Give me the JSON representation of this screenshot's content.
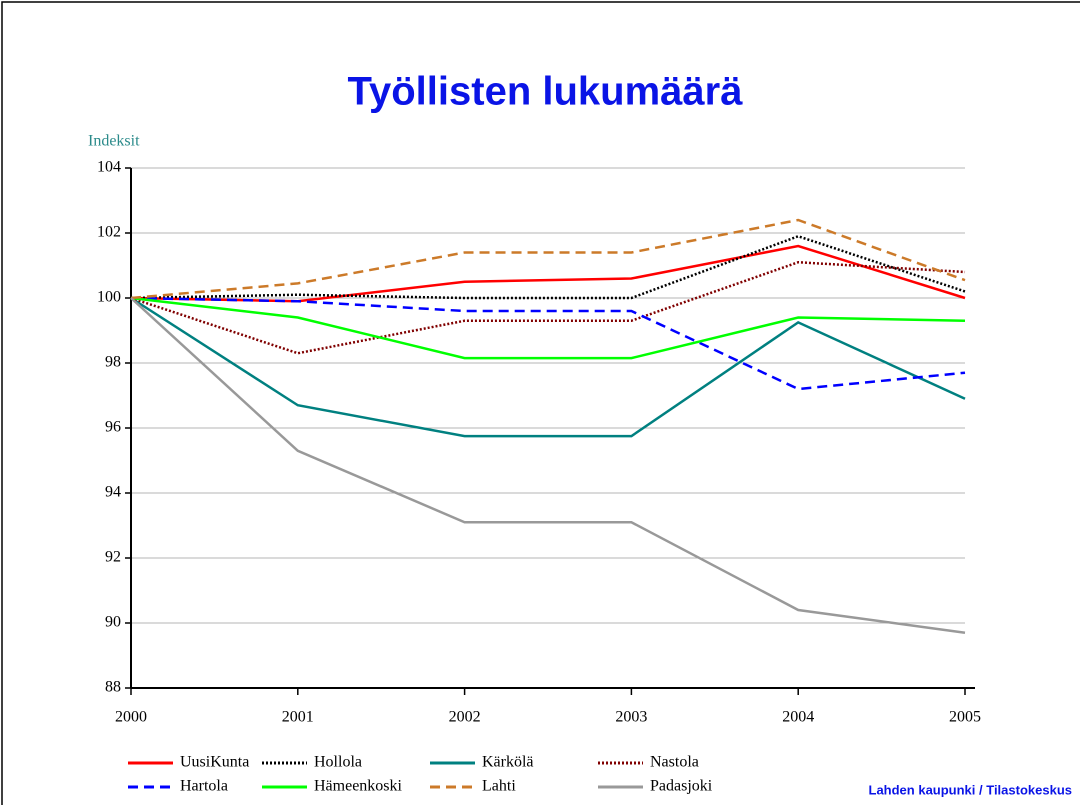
{
  "chart_data": {
    "type": "line",
    "title": "Työllisten lukumäärä",
    "y_label": "Indeksit",
    "source": "Lahden kaupunki / Tilastokeskus",
    "categories": [
      "2000",
      "2001",
      "2002",
      "2003",
      "2004",
      "2005"
    ],
    "ylim": [
      88,
      104
    ],
    "yticks": [
      88,
      90,
      92,
      94,
      96,
      98,
      100,
      102,
      104
    ],
    "grid": true,
    "series": [
      {
        "name": "UusiKunta",
        "color": "#ff0000",
        "style": "solid",
        "values": [
          100,
          99.9,
          100.5,
          100.6,
          101.6,
          100.0
        ]
      },
      {
        "name": "Hollola",
        "color": "#000000",
        "style": "dotted",
        "values": [
          100,
          100.1,
          100.0,
          100.0,
          101.9,
          100.2
        ]
      },
      {
        "name": "Kärkölä",
        "color": "#008080",
        "style": "solid",
        "values": [
          100,
          96.7,
          95.75,
          95.75,
          99.25,
          96.9
        ]
      },
      {
        "name": "Nastola",
        "color": "#800000",
        "style": "dotted",
        "values": [
          100,
          98.3,
          99.3,
          99.3,
          101.1,
          100.8
        ]
      },
      {
        "name": "Hartola",
        "color": "#0000ff",
        "style": "dashed",
        "values": [
          100,
          99.9,
          99.6,
          99.6,
          97.2,
          97.7
        ]
      },
      {
        "name": "Hämeenkoski",
        "color": "#00ff00",
        "style": "solid",
        "values": [
          100,
          99.4,
          98.15,
          98.15,
          99.4,
          99.3
        ]
      },
      {
        "name": "Lahti",
        "color": "#cc7a29",
        "style": "dashed",
        "values": [
          100,
          100.45,
          101.4,
          101.4,
          102.4,
          100.55
        ]
      },
      {
        "name": "Padasjoki",
        "color": "#999999",
        "style": "solid",
        "values": [
          100,
          95.3,
          93.1,
          93.1,
          90.4,
          89.7
        ]
      }
    ]
  }
}
